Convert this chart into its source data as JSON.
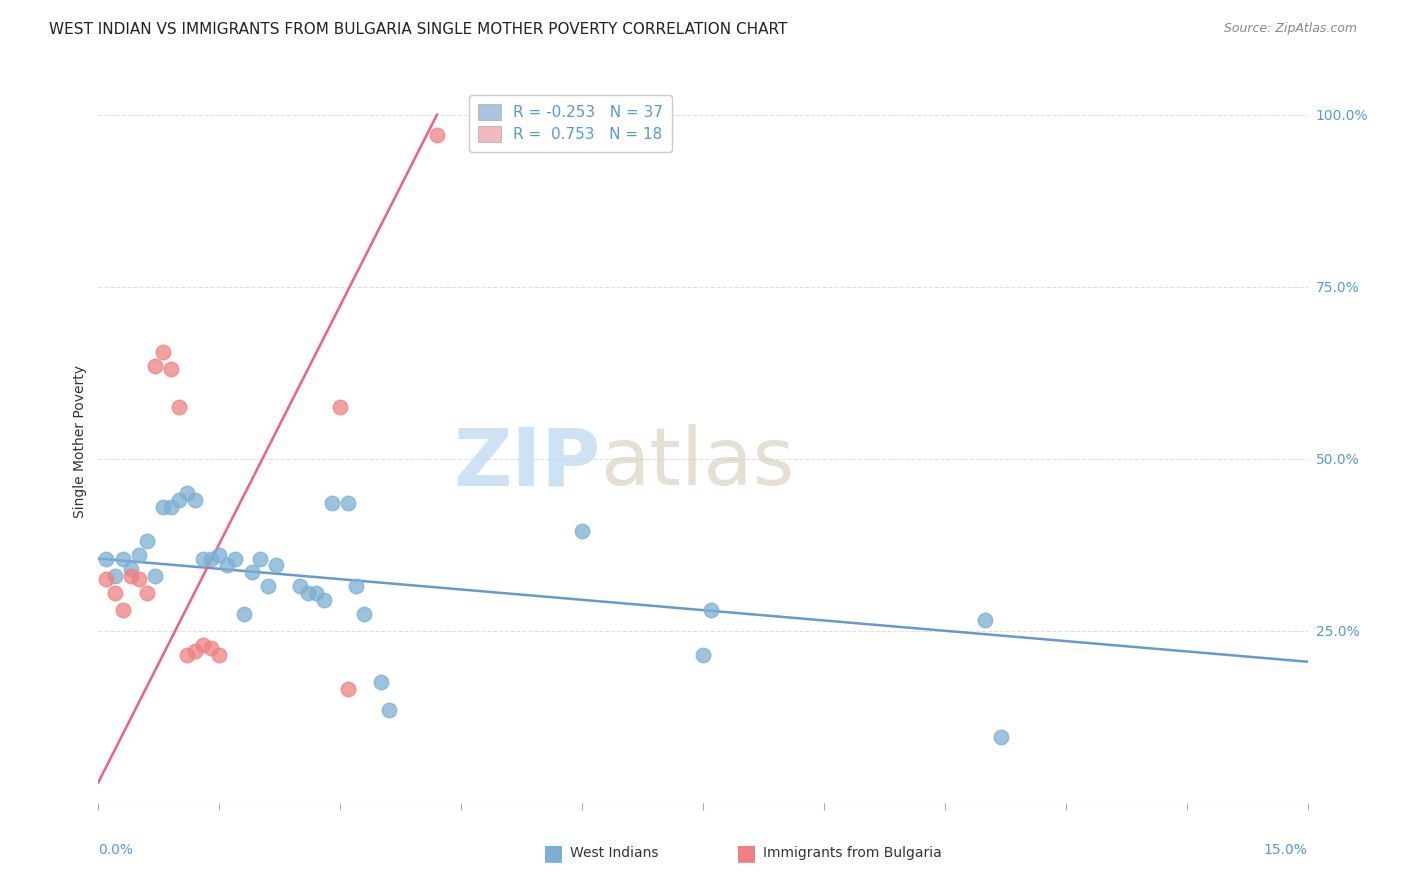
{
  "title": "WEST INDIAN VS IMMIGRANTS FROM BULGARIA SINGLE MOTHER POVERTY CORRELATION CHART",
  "source": "Source: ZipAtlas.com",
  "ylabel": "Single Mother Poverty",
  "ylabel_right_ticks": [
    "100.0%",
    "75.0%",
    "50.0%",
    "25.0%"
  ],
  "ylabel_right_vals": [
    1.0,
    0.75,
    0.5,
    0.25
  ],
  "xmin": 0.0,
  "xmax": 0.15,
  "ymin": 0.0,
  "ymax": 1.05,
  "watermark_zip": "ZIP",
  "watermark_atlas": "atlas",
  "west_indians_color": "#7bafd4",
  "bulgaria_color": "#f08080",
  "west_indians_line_color": "#6699cc",
  "bulgaria_line_color": "#f06080",
  "west_indians": [
    [
      0.001,
      0.355
    ],
    [
      0.002,
      0.33
    ],
    [
      0.003,
      0.355
    ],
    [
      0.004,
      0.34
    ],
    [
      0.005,
      0.36
    ],
    [
      0.006,
      0.38
    ],
    [
      0.007,
      0.33
    ],
    [
      0.008,
      0.43
    ],
    [
      0.009,
      0.43
    ],
    [
      0.01,
      0.44
    ],
    [
      0.011,
      0.45
    ],
    [
      0.012,
      0.44
    ],
    [
      0.013,
      0.355
    ],
    [
      0.014,
      0.355
    ],
    [
      0.015,
      0.36
    ],
    [
      0.016,
      0.345
    ],
    [
      0.017,
      0.355
    ],
    [
      0.018,
      0.275
    ],
    [
      0.019,
      0.335
    ],
    [
      0.02,
      0.355
    ],
    [
      0.021,
      0.315
    ],
    [
      0.022,
      0.345
    ],
    [
      0.025,
      0.315
    ],
    [
      0.026,
      0.305
    ],
    [
      0.027,
      0.305
    ],
    [
      0.028,
      0.295
    ],
    [
      0.029,
      0.435
    ],
    [
      0.031,
      0.435
    ],
    [
      0.032,
      0.315
    ],
    [
      0.033,
      0.275
    ],
    [
      0.035,
      0.175
    ],
    [
      0.036,
      0.135
    ],
    [
      0.06,
      0.395
    ],
    [
      0.075,
      0.215
    ],
    [
      0.076,
      0.28
    ],
    [
      0.11,
      0.265
    ],
    [
      0.112,
      0.095
    ]
  ],
  "bulgaria": [
    [
      0.001,
      0.325
    ],
    [
      0.002,
      0.305
    ],
    [
      0.003,
      0.28
    ],
    [
      0.004,
      0.33
    ],
    [
      0.005,
      0.325
    ],
    [
      0.006,
      0.305
    ],
    [
      0.007,
      0.635
    ],
    [
      0.008,
      0.655
    ],
    [
      0.009,
      0.63
    ],
    [
      0.01,
      0.575
    ],
    [
      0.011,
      0.215
    ],
    [
      0.012,
      0.22
    ],
    [
      0.013,
      0.23
    ],
    [
      0.014,
      0.225
    ],
    [
      0.015,
      0.215
    ],
    [
      0.03,
      0.575
    ],
    [
      0.031,
      0.165
    ],
    [
      0.042,
      0.97
    ]
  ],
  "wi_trend_x0": 0.0,
  "wi_trend_x1": 0.15,
  "wi_trend_y0": 0.355,
  "wi_trend_y1": 0.205,
  "bg_trend_x0": 0.0,
  "bg_trend_x1": 0.042,
  "bg_trend_y0": 0.03,
  "bg_trend_y1": 1.0,
  "grid_color": "#e0e0e0",
  "background_color": "#ffffff",
  "title_fontsize": 11,
  "axis_label_fontsize": 10,
  "tick_fontsize": 10,
  "legend_label_wi": "R = -0.253   N = 37",
  "legend_label_bg": "R =  0.753   N = 18",
  "legend_color_wi": "#a8c4e0",
  "legend_color_bg": "#f4b8c1",
  "bottom_legend_wi": "West Indians",
  "bottom_legend_bg": "Immigrants from Bulgaria"
}
